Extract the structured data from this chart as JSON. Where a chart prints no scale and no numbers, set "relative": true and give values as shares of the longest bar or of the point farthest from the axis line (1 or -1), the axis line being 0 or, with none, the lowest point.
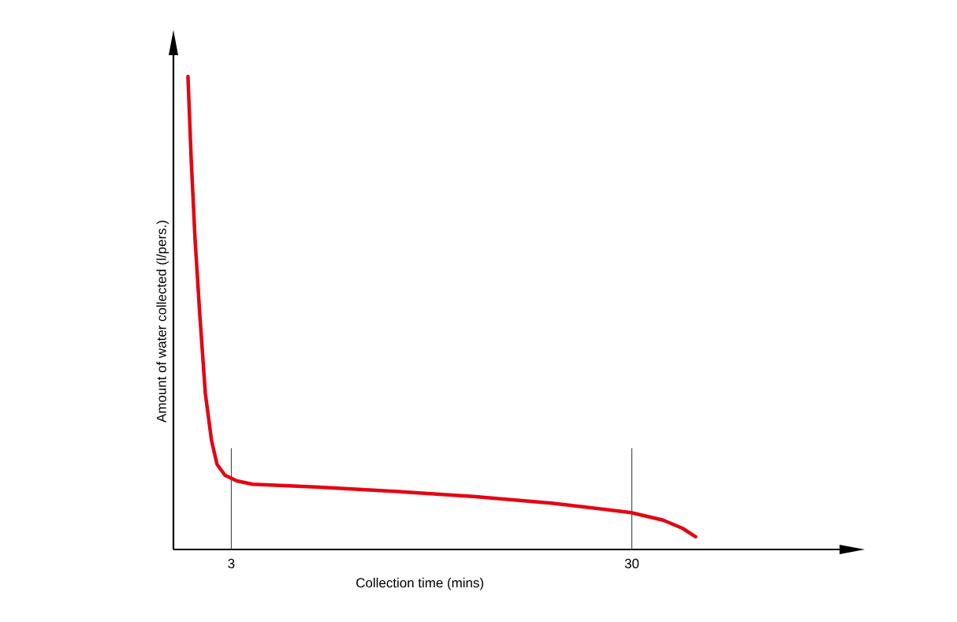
{
  "chart_data": {
    "type": "line",
    "xlabel": "Collection time (mins)",
    "ylabel": "Amount of water collected (l/pers.)",
    "relative": true,
    "x": [
      0.08,
      0.29,
      0.55,
      0.87,
      1.25,
      1.67,
      2.04,
      2.57,
      3.37,
      4.44,
      8.7,
      14.0,
      19.3,
      24.6,
      29.95,
      32.1,
      33.4,
      34.3
    ],
    "series": [
      {
        "color": "#e30613",
        "values": [
          1.0,
          0.83,
          0.66,
          0.5,
          0.33,
          0.23,
          0.18,
          0.157,
          0.145,
          0.138,
          0.132,
          0.123,
          0.112,
          0.098,
          0.078,
          0.062,
          0.045,
          0.027
        ]
      }
    ],
    "xlim": [
      -0.9,
      44.0
    ],
    "xticks": [
      3,
      30
    ],
    "ref_lines": [
      {
        "axis": "x",
        "value": 3,
        "color": "#000000"
      },
      {
        "axis": "x",
        "value": 30,
        "color": "#000000"
      }
    ],
    "marker": "none",
    "line_style": "solid"
  }
}
